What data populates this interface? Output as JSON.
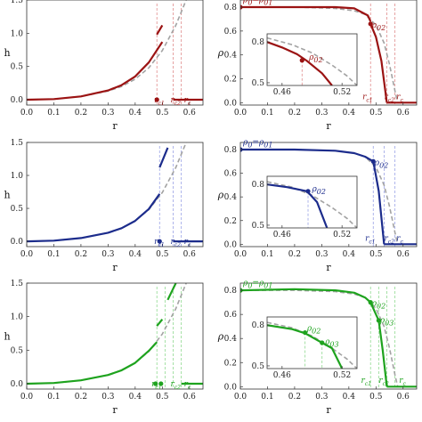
{
  "colors": {
    "red": "#9b1313",
    "blue": "#1c2c8c",
    "green": "#1ea31e",
    "dashed": "#a3a3a3",
    "guide_red": "#e08b8b",
    "guide_blue": "#9aa3e6",
    "guide_green": "#8fd98f"
  },
  "chart_data": [
    {
      "id": "h-red",
      "type": "line",
      "color": "red",
      "xlabel": "r",
      "ylabel": "h",
      "xlim": [
        0,
        0.65
      ],
      "ylim": [
        -0.08,
        1.5
      ],
      "xticks": [
        "0.0",
        "0.1",
        "0.2",
        "0.3",
        "0.4",
        "0.5",
        "0.6"
      ],
      "yticks": [
        "0.0",
        "0.5",
        "1.0",
        "1.5"
      ],
      "dashed": {
        "x": [
          0,
          0.1,
          0.2,
          0.3,
          0.35,
          0.4,
          0.45,
          0.5,
          0.55,
          0.6
        ],
        "y": [
          0,
          0.01,
          0.05,
          0.13,
          0.2,
          0.31,
          0.48,
          0.74,
          1.12,
          1.62
        ]
      },
      "segments": [
        {
          "x": [
            0,
            0.1,
            0.2,
            0.3,
            0.35,
            0.4,
            0.45,
            0.5
          ],
          "y": [
            0,
            0.01,
            0.05,
            0.14,
            0.22,
            0.35,
            0.56,
            0.87
          ]
        },
        {
          "x": [
            0.48,
            0.5
          ],
          "y": [
            0.98,
            1.12
          ]
        },
        {
          "x": [
            0.54,
            0.57,
            0.65
          ],
          "y": [
            0,
            0,
            0
          ]
        }
      ],
      "markers": [
        {
          "x": 0.48,
          "y": 0
        }
      ],
      "guides": [
        0.48,
        0.54,
        0.57
      ],
      "annotations": [
        {
          "text": "r",
          "sub": "c1",
          "x": 0.47,
          "y": -0.04
        },
        {
          "text": "r",
          "sub": "c2",
          "x": 0.53,
          "y": -0.04
        },
        {
          "text": "r",
          "sub": "c",
          "x": 0.58,
          "y": -0.04
        }
      ]
    },
    {
      "id": "rho-red",
      "type": "line",
      "color": "red",
      "xlabel": "r",
      "ylabel": "ρ",
      "xlim": [
        0,
        0.65
      ],
      "ylim": [
        -0.02,
        0.86
      ],
      "xticks": [
        "0.0",
        "0.1",
        "0.2",
        "0.3",
        "0.4",
        "0.5",
        "0.6"
      ],
      "yticks": [
        "0.0",
        "0.2",
        "0.4",
        "0.6",
        "0.8"
      ],
      "dashed": {
        "x": [
          0,
          0.2,
          0.35,
          0.42,
          0.46,
          0.5,
          0.53,
          0.55,
          0.57,
          0.58
        ],
        "y": [
          0.8,
          0.8,
          0.79,
          0.77,
          0.74,
          0.65,
          0.5,
          0.32,
          0.1,
          0
        ]
      },
      "segments": [
        {
          "x": [
            0,
            0.2,
            0.35,
            0.42,
            0.47,
            0.48
          ],
          "y": [
            0.8,
            0.8,
            0.8,
            0.79,
            0.73,
            0.68
          ]
        },
        {
          "x": [
            0.48,
            0.5,
            0.52,
            0.54
          ],
          "y": [
            0.66,
            0.55,
            0.35,
            0
          ]
        },
        {
          "x": [
            0.54,
            0.65
          ],
          "y": [
            0,
            0
          ]
        }
      ],
      "markers": [
        {
          "x": 0,
          "y": 0.8
        },
        {
          "x": 0.48,
          "y": 0.66
        }
      ],
      "guides": [
        0.48,
        0.54,
        0.57
      ],
      "annotations": [
        {
          "text": "ρ",
          "sub": "0",
          "tail": "=ρ",
          "tailsub": "01",
          "x": 0.01,
          "y": 0.84
        },
        {
          "text": "ρ",
          "sub": "02",
          "x": 0.485,
          "y": 0.63
        },
        {
          "text": "r",
          "sub": "c1",
          "x": 0.45,
          "y": 0.03
        },
        {
          "text": "r",
          "sub": "c2",
          "x": 0.53,
          "y": 0.03
        },
        {
          "text": "r",
          "sub": "c",
          "x": 0.575,
          "y": 0.03
        }
      ],
      "inset": {
        "xlim": [
          0.445,
          0.535
        ],
        "ylim": [
          0.48,
          0.86
        ],
        "xticks": [
          "0.46",
          "0.52"
        ],
        "yticks": [
          "0.5",
          "0.8"
        ],
        "xtick_values": [
          0.46,
          0.52
        ],
        "ytick_values": [
          0.5,
          0.8
        ],
        "dashed": {
          "x": [
            0.445,
            0.47,
            0.49,
            0.51,
            0.525,
            0.535
          ],
          "y": [
            0.83,
            0.78,
            0.72,
            0.63,
            0.55,
            0.48
          ]
        },
        "segments": [
          {
            "x": [
              0.445,
              0.46,
              0.475,
              0.485,
              0.5,
              0.51
            ],
            "y": [
              0.8,
              0.76,
              0.71,
              0.66,
              0.57,
              0.48
            ]
          }
        ],
        "markers": [
          {
            "x": 0.48,
            "y": 0.665
          }
        ],
        "guides": [
          0.48
        ],
        "annotations": [
          {
            "text": "ρ",
            "sub": "02",
            "x": 0.487,
            "y": 0.67
          }
        ]
      }
    },
    {
      "id": "h-blue",
      "type": "line",
      "color": "blue",
      "xlabel": "r",
      "ylabel": "h",
      "xlim": [
        0,
        0.65
      ],
      "ylim": [
        -0.08,
        1.5
      ],
      "xticks": [
        "0.0",
        "0.1",
        "0.2",
        "0.3",
        "0.4",
        "0.5",
        "0.6"
      ],
      "yticks": [
        "0.0",
        "0.5",
        "1.0",
        "1.5"
      ],
      "dashed": {
        "x": [
          0,
          0.1,
          0.2,
          0.3,
          0.35,
          0.4,
          0.45,
          0.5,
          0.55,
          0.6
        ],
        "y": [
          0,
          0.01,
          0.05,
          0.13,
          0.2,
          0.31,
          0.48,
          0.74,
          1.12,
          1.62
        ]
      },
      "segments": [
        {
          "x": [
            0,
            0.1,
            0.2,
            0.3,
            0.35,
            0.4,
            0.45,
            0.49
          ],
          "y": [
            0,
            0.01,
            0.05,
            0.13,
            0.2,
            0.31,
            0.49,
            0.72
          ]
        },
        {
          "x": [
            0.49,
            0.52
          ],
          "y": [
            1.12,
            1.42
          ]
        },
        {
          "x": [
            0.54,
            0.65
          ],
          "y": [
            0,
            0
          ]
        }
      ],
      "markers": [
        {
          "x": 0.49,
          "y": 0
        }
      ],
      "guides": [
        0.49,
        0.54,
        0.57
      ],
      "annotations": [
        {
          "text": "r",
          "sub": "c1",
          "x": 0.47,
          "y": -0.04
        },
        {
          "text": "r",
          "sub": "c2",
          "x": 0.53,
          "y": -0.04
        },
        {
          "text": "r",
          "sub": "c",
          "x": 0.58,
          "y": -0.04
        }
      ]
    },
    {
      "id": "rho-blue",
      "type": "line",
      "color": "blue",
      "xlabel": "r",
      "ylabel": "ρ",
      "xlim": [
        0,
        0.65
      ],
      "ylim": [
        -0.02,
        0.86
      ],
      "xticks": [
        "0.0",
        "0.1",
        "0.2",
        "0.3",
        "0.4",
        "0.5",
        "0.6"
      ],
      "yticks": [
        "0.0",
        "0.2",
        "0.4",
        "0.6",
        "0.8"
      ],
      "dashed": {
        "x": [
          0,
          0.2,
          0.35,
          0.42,
          0.46,
          0.5,
          0.53,
          0.55,
          0.57,
          0.58
        ],
        "y": [
          0.8,
          0.8,
          0.79,
          0.77,
          0.74,
          0.65,
          0.5,
          0.32,
          0.1,
          0
        ]
      },
      "segments": [
        {
          "x": [
            0,
            0.2,
            0.35,
            0.42,
            0.46,
            0.49
          ],
          "y": [
            0.8,
            0.8,
            0.79,
            0.77,
            0.74,
            0.7
          ]
        },
        {
          "x": [
            0.49,
            0.51,
            0.53
          ],
          "y": [
            0.7,
            0.45,
            0
          ]
        },
        {
          "x": [
            0.53,
            0.65
          ],
          "y": [
            0,
            0
          ]
        }
      ],
      "markers": [
        {
          "x": 0,
          "y": 0.8
        },
        {
          "x": 0.49,
          "y": 0.7
        }
      ],
      "guides": [
        0.49,
        0.53,
        0.57
      ],
      "annotations": [
        {
          "text": "ρ",
          "sub": "0",
          "tail": "=ρ",
          "tailsub": "01",
          "x": 0.01,
          "y": 0.84
        },
        {
          "text": "ρ",
          "sub": "02",
          "x": 0.495,
          "y": 0.67
        },
        {
          "text": "r",
          "sub": "c1",
          "x": 0.46,
          "y": 0.03
        },
        {
          "text": "r",
          "sub": "c2",
          "x": 0.53,
          "y": 0.03
        },
        {
          "text": "r",
          "sub": "c",
          "x": 0.575,
          "y": 0.03
        }
      ],
      "inset": {
        "xlim": [
          0.445,
          0.535
        ],
        "ylim": [
          0.48,
          0.86
        ],
        "xticks": [
          "0.46",
          "0.52"
        ],
        "yticks": [
          "0.5",
          "0.8"
        ],
        "xtick_values": [
          0.46,
          0.52
        ],
        "ytick_values": [
          0.5,
          0.8
        ],
        "dashed": {
          "x": [
            0.445,
            0.47,
            0.49,
            0.51,
            0.525,
            0.535
          ],
          "y": [
            0.82,
            0.78,
            0.72,
            0.63,
            0.55,
            0.48
          ]
        },
        "segments": [
          {
            "x": [
              0.445,
              0.465,
              0.485,
              0.495,
              0.505
            ],
            "y": [
              0.8,
              0.78,
              0.75,
              0.67,
              0.48
            ]
          }
        ],
        "markers": [
          {
            "x": 0.486,
            "y": 0.75
          }
        ],
        "guides": [
          0.486
        ],
        "annotations": [
          {
            "text": "ρ",
            "sub": "02",
            "x": 0.49,
            "y": 0.75
          }
        ]
      }
    },
    {
      "id": "h-green",
      "type": "line",
      "color": "green",
      "xlabel": "r",
      "ylabel": "h",
      "xlim": [
        0,
        0.65
      ],
      "ylim": [
        -0.08,
        1.5
      ],
      "xticks": [
        "0.0",
        "0.1",
        "0.2",
        "0.3",
        "0.4",
        "0.5",
        "0.6"
      ],
      "yticks": [
        "0.0",
        "0.5",
        "1.0",
        "1.5"
      ],
      "dashed": {
        "x": [
          0,
          0.1,
          0.2,
          0.3,
          0.35,
          0.4,
          0.45,
          0.5,
          0.55,
          0.6
        ],
        "y": [
          0,
          0.01,
          0.05,
          0.13,
          0.2,
          0.31,
          0.48,
          0.74,
          1.12,
          1.62
        ]
      },
      "segments": [
        {
          "x": [
            0,
            0.1,
            0.2,
            0.3,
            0.35,
            0.4,
            0.45,
            0.48
          ],
          "y": [
            0,
            0.01,
            0.05,
            0.13,
            0.2,
            0.31,
            0.49,
            0.62
          ]
        },
        {
          "x": [
            0.48,
            0.5
          ],
          "y": [
            0.86,
            0.96
          ]
        },
        {
          "x": [
            0.52,
            0.55
          ],
          "y": [
            1.25,
            1.5
          ]
        },
        {
          "x": [
            0.57,
            0.65
          ],
          "y": [
            0,
            0
          ]
        }
      ],
      "markers": [
        {
          "x": 0.475,
          "y": 0
        },
        {
          "x": 0.495,
          "y": 0
        }
      ],
      "guides": [
        0.48,
        0.51,
        0.54,
        0.57
      ],
      "annotations": [
        {
          "text": "r",
          "sub": "c1",
          "x": 0.46,
          "y": -0.04
        },
        {
          "text": "r",
          "sub": "c2",
          "x": 0.53,
          "y": -0.04
        },
        {
          "text": "r",
          "sub": "c",
          "x": 0.58,
          "y": -0.04
        }
      ]
    },
    {
      "id": "rho-green",
      "type": "line",
      "color": "green",
      "xlabel": "r",
      "ylabel": "ρ",
      "xlim": [
        0,
        0.65
      ],
      "ylim": [
        -0.02,
        0.86
      ],
      "xticks": [
        "0.0",
        "0.1",
        "0.2",
        "0.3",
        "0.4",
        "0.5",
        "0.6"
      ],
      "yticks": [
        "0.0",
        "0.2",
        "0.4",
        "0.6",
        "0.8"
      ],
      "dashed": {
        "x": [
          0,
          0.2,
          0.35,
          0.42,
          0.46,
          0.5,
          0.53,
          0.55,
          0.57,
          0.58
        ],
        "y": [
          0.8,
          0.8,
          0.79,
          0.77,
          0.74,
          0.65,
          0.5,
          0.32,
          0.1,
          0
        ]
      },
      "segments": [
        {
          "x": [
            0,
            0.2,
            0.35,
            0.42,
            0.46,
            0.48
          ],
          "y": [
            0.8,
            0.81,
            0.8,
            0.78,
            0.74,
            0.7
          ]
        },
        {
          "x": [
            0.48,
            0.5,
            0.51
          ],
          "y": [
            0.7,
            0.6,
            0.55
          ]
        },
        {
          "x": [
            0.51,
            0.525,
            0.54
          ],
          "y": [
            0.55,
            0.3,
            0
          ]
        },
        {
          "x": [
            0.54,
            0.65
          ],
          "y": [
            0,
            0
          ]
        }
      ],
      "markers": [
        {
          "x": 0,
          "y": 0.8
        },
        {
          "x": 0.48,
          "y": 0.7
        },
        {
          "x": 0.51,
          "y": 0.55
        }
      ],
      "guides": [
        0.48,
        0.51,
        0.54,
        0.57
      ],
      "annotations": [
        {
          "text": "ρ",
          "sub": "0",
          "tail": "=ρ",
          "tailsub": "01",
          "x": 0.01,
          "y": 0.84
        },
        {
          "text": "ρ",
          "sub": "02",
          "x": 0.485,
          "y": 0.67
        },
        {
          "text": "ρ",
          "sub": "03",
          "x": 0.515,
          "y": 0.53
        },
        {
          "text": "r",
          "sub": "c1",
          "x": 0.445,
          "y": 0.03
        },
        {
          "text": "r",
          "sub": "c2",
          "x": 0.51,
          "y": 0.03
        },
        {
          "text": "r",
          "sub": "c",
          "x": 0.585,
          "y": 0.03
        }
      ],
      "inset": {
        "xlim": [
          0.445,
          0.535
        ],
        "ylim": [
          0.48,
          0.86
        ],
        "xticks": [
          "0.46",
          "0.52"
        ],
        "yticks": [
          "0.5",
          "0.8"
        ],
        "xtick_values": [
          0.46,
          0.52
        ],
        "ytick_values": [
          0.5,
          0.8
        ],
        "dashed": {
          "x": [
            0.445,
            0.47,
            0.49,
            0.51,
            0.525,
            0.535
          ],
          "y": [
            0.82,
            0.78,
            0.72,
            0.63,
            0.55,
            0.48
          ]
        },
        "segments": [
          {
            "x": [
              0.445,
              0.47,
              0.483,
              0.5,
              0.51,
              0.52
            ],
            "y": [
              0.8,
              0.77,
              0.74,
              0.67,
              0.63,
              0.48
            ]
          }
        ],
        "markers": [
          {
            "x": 0.483,
            "y": 0.745
          },
          {
            "x": 0.5,
            "y": 0.67
          }
        ],
        "guides": [
          0.483,
          0.5
        ],
        "annotations": [
          {
            "text": "ρ",
            "sub": "02",
            "x": 0.485,
            "y": 0.76
          },
          {
            "text": "ρ",
            "sub": "03",
            "x": 0.503,
            "y": 0.66
          }
        ]
      }
    }
  ]
}
